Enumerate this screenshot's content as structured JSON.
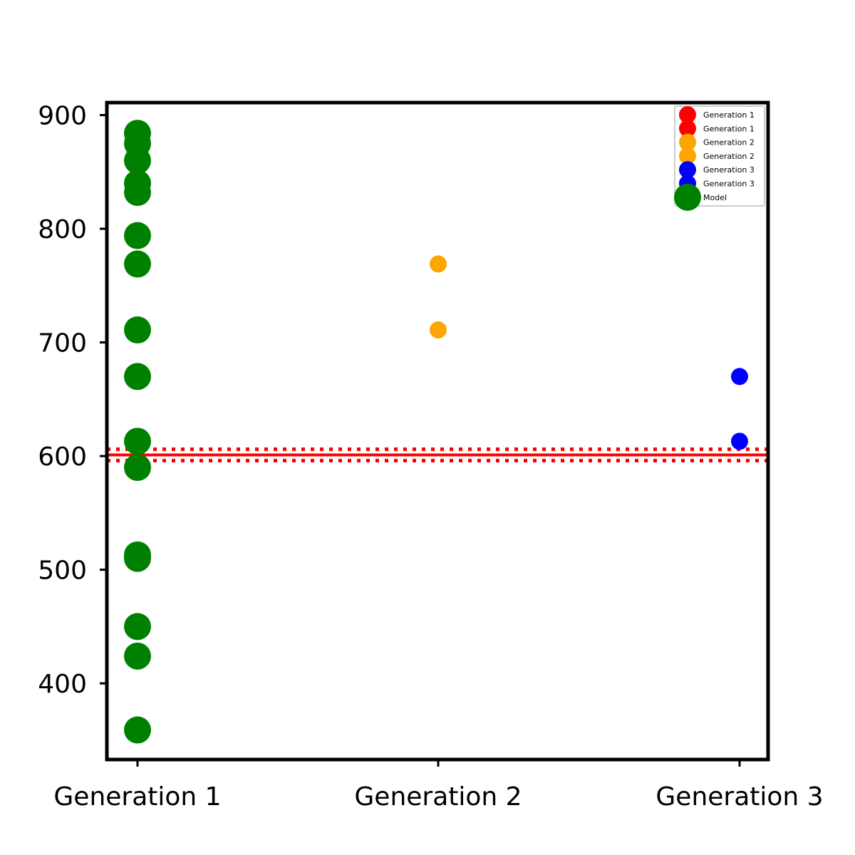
{
  "chart_data": {
    "type": "scatter",
    "title": "",
    "xlabel": "",
    "ylabel": "",
    "categories": [
      "Generation 1",
      "Generation 2",
      "Generation 3"
    ],
    "ylim": [
      333,
      911
    ],
    "yticks": [
      400,
      500,
      600,
      700,
      800,
      900
    ],
    "grid": false,
    "legend_position": "top-right",
    "series": [
      {
        "name": "Generation 1",
        "color": "#ff0000",
        "category": 0,
        "marker": "small",
        "values": []
      },
      {
        "name": "Generation 1",
        "color": "#ff0000",
        "category": 0,
        "marker": "small",
        "values": []
      },
      {
        "name": "Generation 2",
        "color": "#ffa500",
        "category": 1,
        "marker": "small",
        "values": [
          769,
          711
        ]
      },
      {
        "name": "Generation 2",
        "color": "#ffa500",
        "category": 1,
        "marker": "small",
        "values": []
      },
      {
        "name": "Generation 3",
        "color": "#0000ff",
        "category": 2,
        "marker": "small",
        "values": [
          670,
          613
        ]
      },
      {
        "name": "Generation 3",
        "color": "#0000ff",
        "category": 2,
        "marker": "small",
        "values": []
      },
      {
        "name": "Model",
        "color": "#008000",
        "category": 0,
        "marker": "large",
        "values": [
          884,
          875,
          860,
          840,
          832,
          794,
          769,
          711,
          670,
          613,
          590,
          513,
          510,
          450,
          424,
          359
        ]
      }
    ],
    "reference_line": {
      "value": 601,
      "band": [
        596,
        606
      ],
      "color": "#ff0000"
    }
  }
}
